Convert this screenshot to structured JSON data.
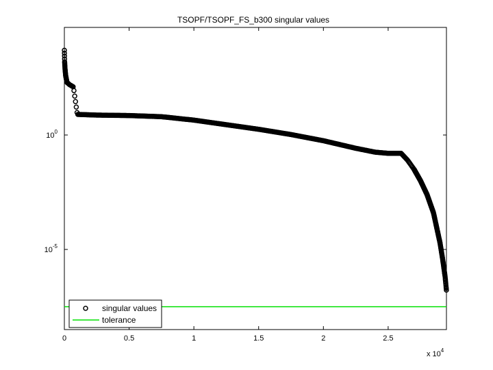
{
  "chart_data": {
    "type": "scatter",
    "title": "TSOPF/TSOPF_FS_b300 singular values",
    "xlabel": "",
    "ylabel": "",
    "x_multiplier_label": "x 10",
    "x_multiplier_exp": "4",
    "xlim": [
      0,
      29500
    ],
    "ylim_log10": [
      -8.5,
      4.7
    ],
    "y_scale": "log",
    "x_ticks": [
      {
        "value": 0,
        "label": "0"
      },
      {
        "value": 5000,
        "label": "0.5"
      },
      {
        "value": 10000,
        "label": "1"
      },
      {
        "value": 15000,
        "label": "1.5"
      },
      {
        "value": 20000,
        "label": "2"
      },
      {
        "value": 25000,
        "label": "2.5"
      }
    ],
    "y_ticks": [
      {
        "log10": 0,
        "base": "10",
        "exp": "0"
      },
      {
        "log10": -5,
        "base": "10",
        "exp": "-5"
      }
    ],
    "grid": false,
    "legend_position": "bottom-left",
    "series": [
      {
        "name": "singular values",
        "marker": "circle",
        "color": "#000000",
        "x": [
          0,
          20,
          50,
          100,
          200,
          400,
          700,
          1000,
          2500,
          5000,
          7500,
          10000,
          12500,
          15000,
          17500,
          20000,
          22500,
          24000,
          25000,
          26000,
          26500,
          27000,
          27500,
          28000,
          28500,
          29000,
          29200,
          29400,
          29500
        ],
        "log10_y": [
          3.7,
          3.2,
          2.9,
          2.6,
          2.3,
          2.2,
          2.1,
          0.9,
          0.87,
          0.85,
          0.8,
          0.65,
          0.45,
          0.25,
          0.02,
          -0.25,
          -0.58,
          -0.75,
          -0.8,
          -0.8,
          -1.1,
          -1.5,
          -2.0,
          -2.6,
          -3.4,
          -4.7,
          -5.4,
          -6.2,
          -6.8
        ]
      },
      {
        "name": "tolerance",
        "marker": "line",
        "color": "#00e000",
        "log10_y_const": -7.5
      }
    ]
  }
}
